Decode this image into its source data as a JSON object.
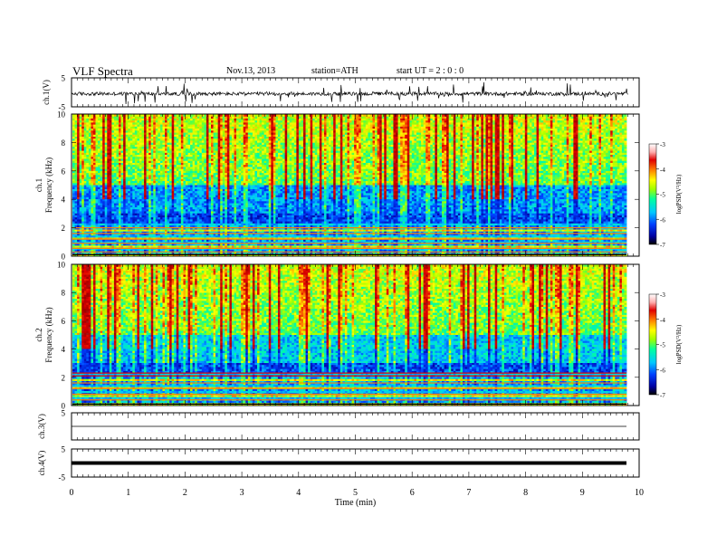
{
  "header": {
    "title": "VLF  Spectra",
    "date": "Nov.13, 2013",
    "station": "station=ATH",
    "start": "start  UT  =   2  : 0  : 0"
  },
  "colorbar": {
    "label": "logPSD(V²/Hz)",
    "ticks": [
      "-3",
      "-4",
      "-5",
      "-6",
      "-7"
    ],
    "range": [
      -7,
      -3
    ],
    "colors": [
      "#000000",
      "#0000a0",
      "#0040ff",
      "#00c8ff",
      "#00ffa0",
      "#a0ff00",
      "#ffff00",
      "#ff8000",
      "#e00000",
      "#a00000",
      "#ffffff"
    ]
  },
  "chart_data": [
    {
      "type": "line",
      "name": "ch1",
      "ylabel": "ch.1(V)",
      "yticks": [
        "5",
        "-5"
      ],
      "ylim": [
        -5,
        5
      ],
      "xlim": [
        0,
        10
      ],
      "description_values": {
        "baseline": -0.5,
        "noise_amplitude": 1.5
      }
    },
    {
      "type": "heatmap",
      "name": "ch1-spectrogram",
      "ylabel_channel": "ch.1",
      "ylabel": "Frequency  (kHz)",
      "yticks": [
        "0",
        "2",
        "4",
        "6",
        "8",
        "10"
      ],
      "ylim": [
        0,
        10
      ],
      "xlim": [
        0,
        9.8
      ],
      "zlim": [
        -7,
        -3
      ]
    },
    {
      "type": "heatmap",
      "name": "ch2-spectrogram",
      "ylabel_channel": "ch.2",
      "ylabel": "Frequency  (kHz)",
      "yticks": [
        "0",
        "2",
        "4",
        "6",
        "8",
        "10"
      ],
      "ylim": [
        0,
        10
      ],
      "xlim": [
        0,
        9.8
      ],
      "zlim": [
        -7,
        -3
      ]
    },
    {
      "type": "line",
      "name": "ch3",
      "ylabel": "ch.3(V)",
      "yticks": [
        "5"
      ],
      "ylim": [
        -5,
        5
      ],
      "xlim": [
        0,
        10
      ],
      "level": 0
    },
    {
      "type": "line",
      "name": "ch4",
      "ylabel": "ch.4(V)",
      "yticks": [
        "5",
        "-5"
      ],
      "ylim": [
        -5,
        5
      ],
      "xlim": [
        0,
        10
      ],
      "level": 0
    }
  ],
  "xaxis": {
    "label": "Time  (min)",
    "ticks": [
      "0",
      "1",
      "2",
      "3",
      "4",
      "5",
      "6",
      "7",
      "8",
      "9",
      "10"
    ]
  }
}
